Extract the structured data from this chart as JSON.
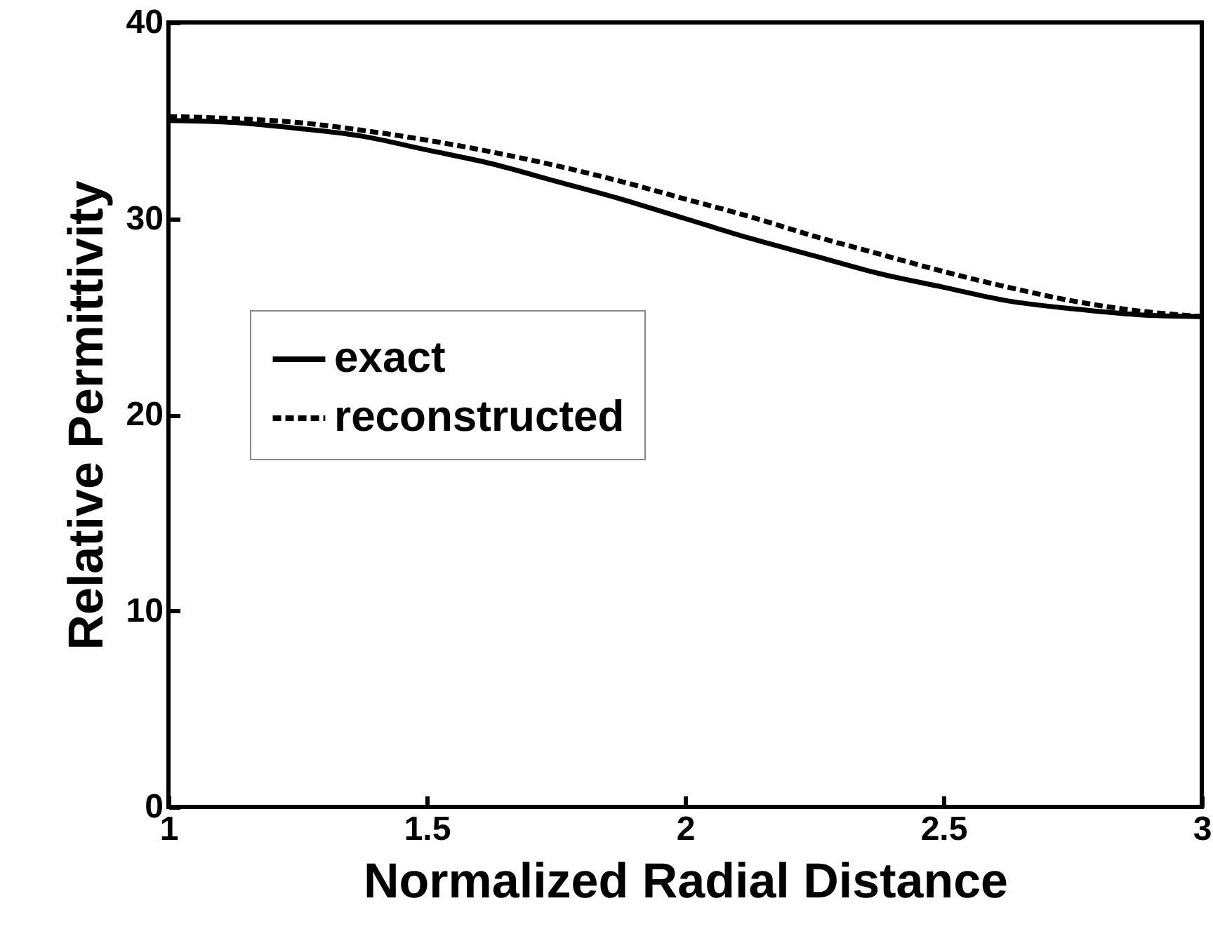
{
  "chart_data": {
    "type": "line",
    "xlabel": "Normalized Radial Distance",
    "ylabel": "Relative Permittivity",
    "xlim": [
      1,
      3
    ],
    "xticks": [
      1,
      1.5,
      2,
      2.5,
      3
    ],
    "ylim": [
      0,
      40
    ],
    "yticks": [
      0,
      10,
      20,
      30,
      40
    ],
    "grid": false,
    "legend": "left",
    "marker": "none",
    "x": [
      1,
      1.125,
      1.25,
      1.375,
      1.5,
      1.625,
      1.75,
      1.875,
      2,
      2.125,
      2.25,
      2.375,
      2.5,
      2.625,
      2.75,
      2.875,
      3
    ],
    "series": [
      {
        "name": "exact",
        "color": "#000000",
        "line_style": "solid",
        "values": [
          35,
          34.9,
          34.6,
          34.2,
          33.5,
          32.8,
          31.9,
          31,
          30,
          29,
          28.1,
          27.2,
          26.5,
          25.8,
          25.4,
          25.1,
          25
        ]
      },
      {
        "name": "reconstructed",
        "color": "#000000",
        "line_style": "dashed",
        "values": [
          35.2,
          35.1,
          34.9,
          34.5,
          34,
          33.4,
          32.7,
          31.9,
          31,
          30.1,
          29.1,
          28.2,
          27.3,
          26.5,
          25.8,
          25.3,
          25
        ]
      }
    ]
  }
}
